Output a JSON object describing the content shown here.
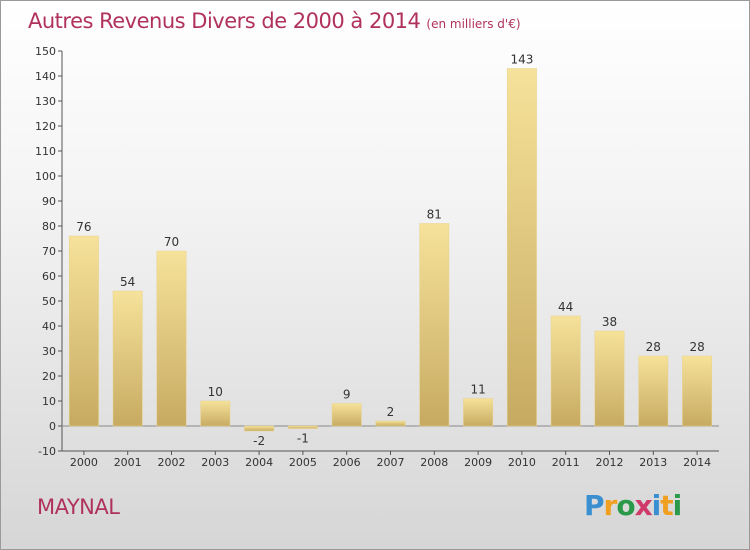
{
  "header": {
    "title": "Autres Revenus Divers de 2000 à 2014",
    "unit": "(en milliers d'€)"
  },
  "footer": {
    "place": "MAYNAL",
    "logo_text": "Proxiti"
  },
  "colors": {
    "title": "#b0325c",
    "bar_light": "#f6e29a",
    "bar_dark": "#c7aa62",
    "axis": "#555555"
  },
  "chart_data": {
    "type": "bar",
    "categories": [
      "2000",
      "2001",
      "2002",
      "2003",
      "2004",
      "2005",
      "2006",
      "2007",
      "2008",
      "2009",
      "2010",
      "2011",
      "2012",
      "2013",
      "2014"
    ],
    "values": [
      76,
      54,
      70,
      10,
      -2,
      -1,
      9,
      2,
      81,
      11,
      143,
      44,
      38,
      28,
      28
    ],
    "labels": [
      "76",
      "54",
      "70",
      "10",
      "-2",
      "-1",
      "9",
      "2",
      "81",
      "11",
      "143",
      "44",
      "38",
      "28",
      "28"
    ],
    "ylim": [
      -10,
      150
    ],
    "yticks": [
      -10,
      0,
      10,
      20,
      30,
      40,
      50,
      60,
      70,
      80,
      90,
      100,
      110,
      120,
      130,
      140,
      150
    ],
    "grid": false,
    "title": "Autres Revenus Divers de 2000 à 2014",
    "xlabel": "",
    "ylabel": ""
  }
}
